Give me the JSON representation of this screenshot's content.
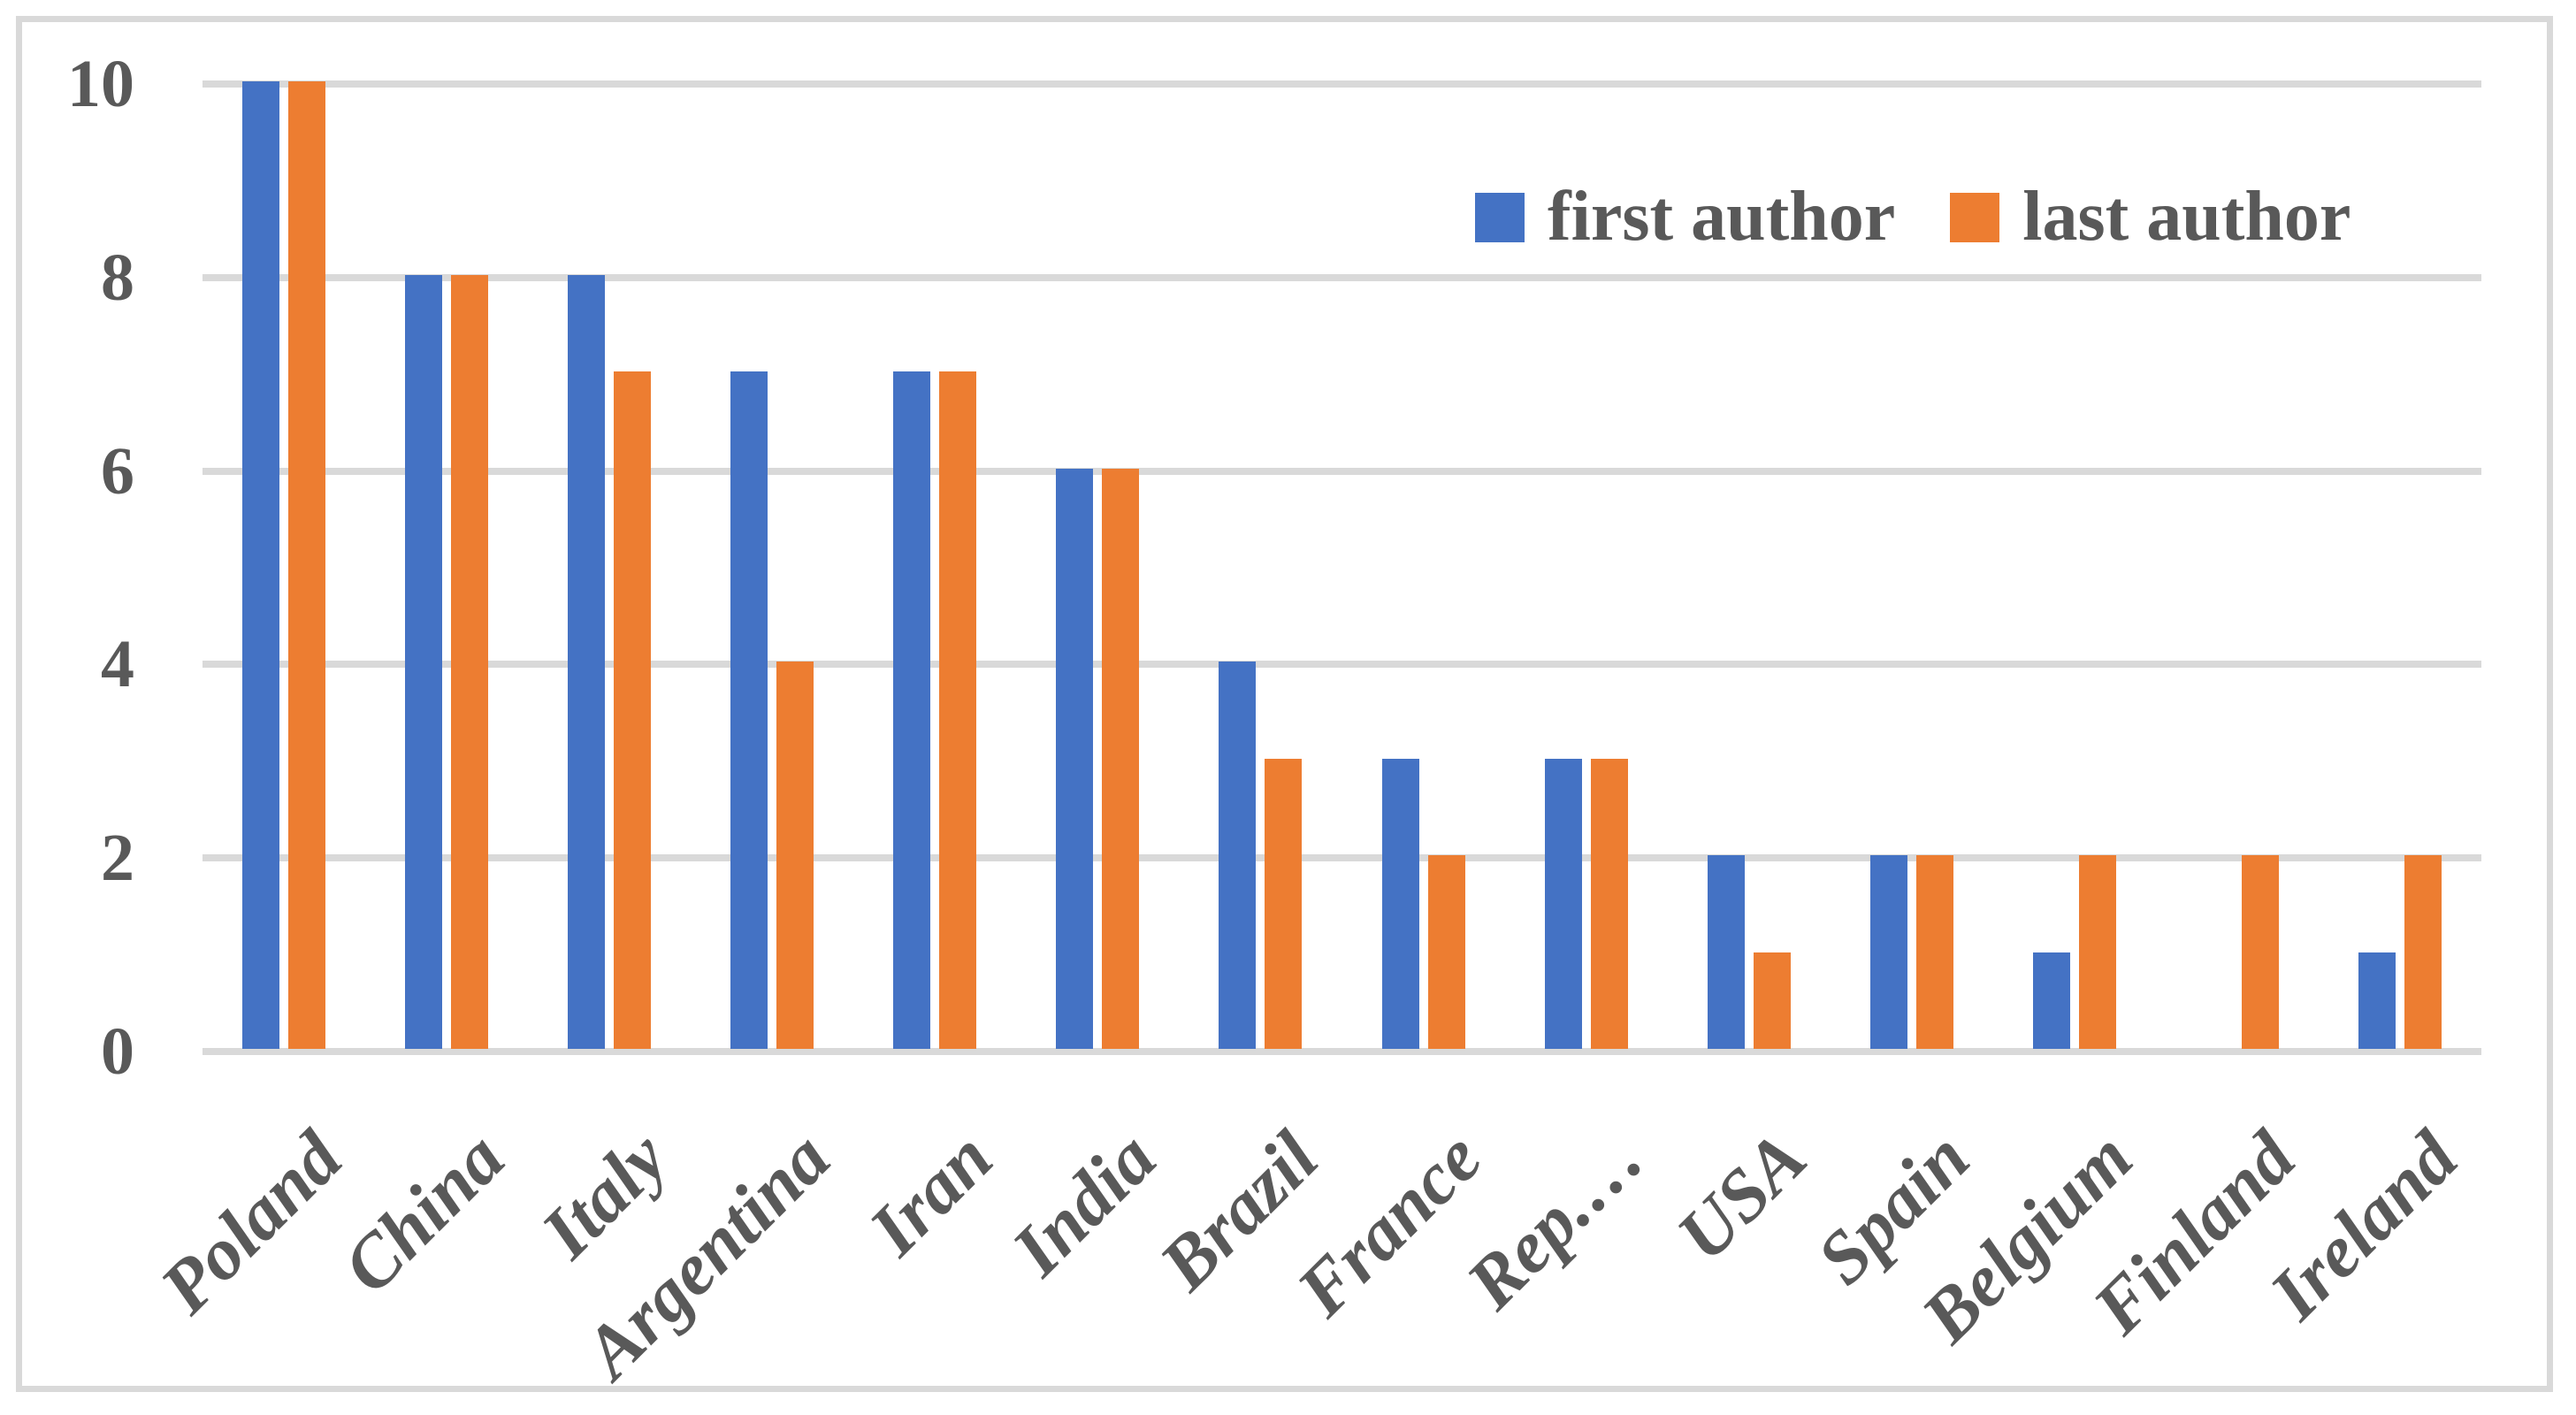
{
  "chart_data": {
    "type": "bar",
    "title": "",
    "xlabel": "",
    "ylabel": "",
    "categories": [
      "Poland",
      "China",
      "Italy",
      "Argentina",
      "Iran",
      "India",
      "Brazil",
      "France",
      "Rep.…",
      "USA",
      "Spain",
      "Belgium",
      "Finland",
      "Ireland"
    ],
    "series": [
      {
        "name": "first author",
        "color": "#4472C4",
        "values": [
          10,
          8,
          8,
          7,
          7,
          6,
          4,
          3,
          3,
          2,
          2,
          1,
          0,
          1
        ]
      },
      {
        "name": "last author",
        "color": "#ED7D31",
        "values": [
          10,
          8,
          7,
          4,
          7,
          6,
          3,
          2,
          3,
          1,
          2,
          2,
          2,
          2
        ]
      }
    ],
    "ylim": [
      0,
      10
    ],
    "yticks": [
      0,
      2,
      4,
      6,
      8,
      10
    ],
    "grid": true,
    "legend_position": "top-right",
    "axis_text_color": "#595959",
    "gridline_color": "#D9D9D9",
    "border_color": "#D9D9D9"
  }
}
